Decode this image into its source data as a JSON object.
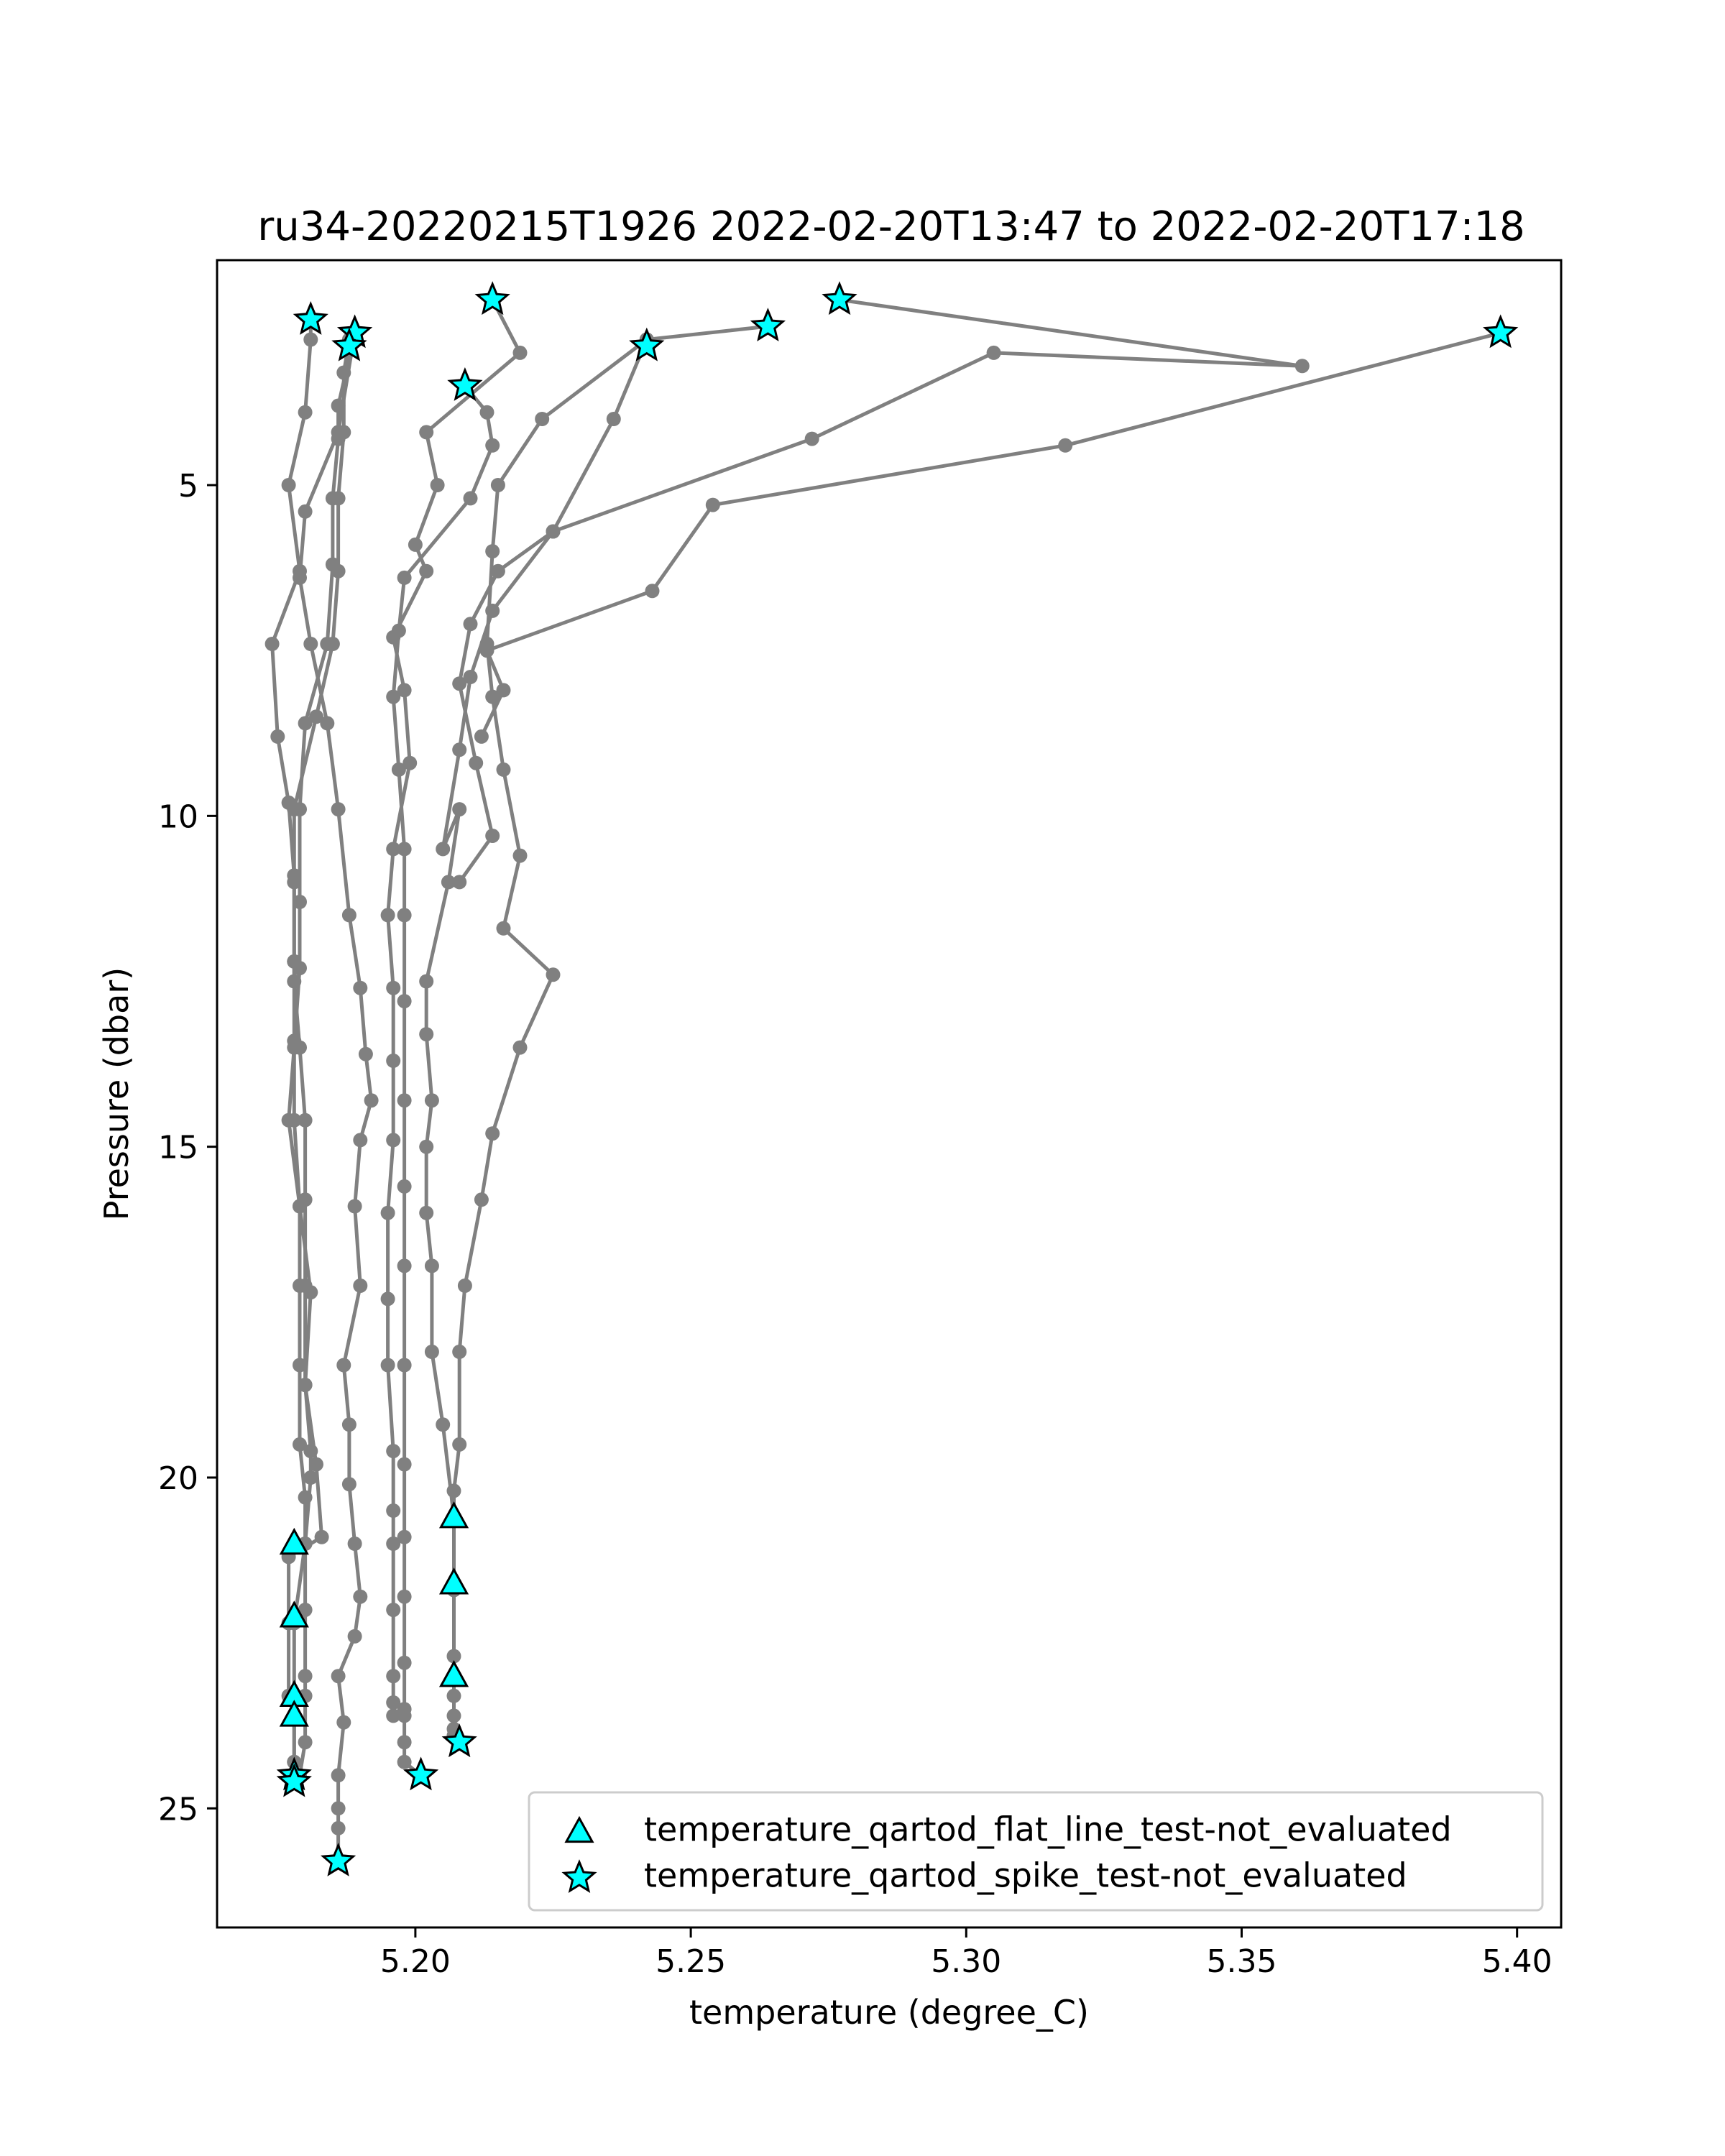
{
  "chart_data": {
    "type": "line",
    "title": "ru34-20220215T1926 2022-02-20T13:47 to 2022-02-20T17:18",
    "xlabel": "temperature (degree_C)",
    "ylabel": "Pressure (dbar)",
    "xlim": [
      5.164,
      5.408
    ],
    "ylim": [
      26.8,
      1.6
    ],
    "y_inverted": true,
    "xticks": [
      "5.20",
      "5.25",
      "5.30",
      "5.35",
      "5.40"
    ],
    "xtick_values": [
      5.2,
      5.25,
      5.3,
      5.35,
      5.4
    ],
    "yticks": [
      "5",
      "10",
      "15",
      "20",
      "25"
    ],
    "ytick_values": [
      5,
      10,
      15,
      20,
      25
    ],
    "grid": false,
    "legend_position": "lower-right",
    "colors": {
      "line": "#808080",
      "marker": "#00ffff",
      "edge": "#000000"
    },
    "profiles": [
      {
        "x": [
          5.181,
          5.181,
          5.18,
          5.177,
          5.179,
          5.174,
          5.175,
          5.177,
          5.178,
          5.178,
          5.178,
          5.179,
          5.18,
          5.18,
          5.18,
          5.18,
          5.181,
          5.181,
          5.18,
          5.18,
          5.18,
          5.18,
          5.18,
          5.179
        ],
        "y": [
          2.5,
          2.8,
          3.9,
          5.0,
          6.3,
          7.4,
          8.8,
          9.8,
          10.9,
          12.2,
          12.5,
          13.5,
          14.6,
          15.8,
          17.1,
          18.6,
          19.6,
          20.0,
          21.0,
          22.0,
          23.0,
          23.3,
          24.0,
          24.5
        ]
      },
      {
        "x": [
          5.189,
          5.186,
          5.186,
          5.185,
          5.185,
          5.184,
          5.18,
          5.179,
          5.179,
          5.179,
          5.178,
          5.177,
          5.179,
          5.181,
          5.18,
          5.182,
          5.183,
          5.177,
          5.177,
          5.177,
          5.178,
          5.178,
          5.178,
          5.178
        ],
        "y": [
          2.7,
          3.8,
          4.3,
          5.2,
          6.2,
          7.4,
          8.6,
          9.9,
          11.3,
          12.3,
          13.5,
          14.6,
          15.9,
          17.2,
          18.6,
          19.8,
          20.9,
          21.2,
          22.2,
          23.3,
          23.6,
          24.3,
          24.5,
          24.6
        ]
      },
      {
        "x": [
          5.188,
          5.187,
          5.187,
          5.186,
          5.186,
          5.185,
          5.182,
          5.178,
          5.178,
          5.178,
          5.178,
          5.178,
          5.179,
          5.179,
          5.179,
          5.179,
          5.18,
          5.18,
          5.178,
          5.178,
          5.178,
          5.178,
          5.178,
          5.178
        ],
        "y": [
          2.8,
          3.3,
          4.2,
          5.2,
          6.3,
          7.4,
          8.5,
          9.9,
          11.0,
          12.2,
          13.4,
          14.6,
          15.9,
          17.1,
          18.3,
          19.5,
          20.3,
          21.0,
          22.2,
          23.3,
          23.6,
          24.3,
          24.5,
          24.6
        ]
      },
      {
        "x": [
          5.209,
          5.213,
          5.214,
          5.21,
          5.198,
          5.197,
          5.196,
          5.197,
          5.198,
          5.198,
          5.198,
          5.198,
          5.198,
          5.198,
          5.198,
          5.198,
          5.198,
          5.198,
          5.198,
          5.198,
          5.198,
          5.198,
          5.198,
          5.201
        ],
        "y": [
          3.5,
          3.9,
          4.4,
          5.2,
          6.4,
          7.2,
          8.2,
          9.3,
          10.5,
          11.5,
          12.8,
          14.3,
          15.6,
          16.8,
          18.3,
          19.8,
          20.9,
          21.8,
          22.8,
          23.5,
          23.6,
          24.0,
          24.3,
          24.5
        ]
      },
      {
        "x": [
          5.214,
          5.219,
          5.202,
          5.204,
          5.2,
          5.202,
          5.196,
          5.198,
          5.199,
          5.196,
          5.195,
          5.196,
          5.196,
          5.196,
          5.195,
          5.195,
          5.195,
          5.196,
          5.196,
          5.196,
          5.196,
          5.196,
          5.196,
          5.196
        ],
        "y": [
          2.2,
          3.0,
          4.2,
          5.0,
          5.9,
          6.3,
          7.3,
          8.1,
          9.2,
          10.5,
          11.5,
          12.6,
          13.7,
          14.9,
          16.0,
          17.3,
          18.3,
          19.6,
          20.5,
          21.0,
          22.0,
          23.0,
          23.4,
          23.6
        ]
      },
      {
        "x": [
          5.189,
          5.186,
          5.18,
          5.179,
          5.181,
          5.184,
          5.186,
          5.188,
          5.19,
          5.191,
          5.192,
          5.19,
          5.189,
          5.19,
          5.187,
          5.188,
          5.188,
          5.189,
          5.19,
          5.189,
          5.186,
          5.187,
          5.186,
          5.186,
          5.186,
          5.186
        ],
        "y": [
          2.7,
          4.2,
          5.4,
          6.4,
          7.4,
          8.6,
          9.9,
          11.5,
          12.6,
          13.6,
          14.3,
          14.9,
          15.9,
          17.1,
          18.3,
          19.2,
          20.1,
          21.0,
          21.8,
          22.4,
          23.0,
          23.7,
          24.5,
          25.0,
          25.3,
          25.8
        ]
      },
      {
        "x": [
          5.242,
          5.236,
          5.225,
          5.214,
          5.21,
          5.208,
          5.205,
          5.208,
          5.206,
          5.202,
          5.202,
          5.203,
          5.202,
          5.202,
          5.203,
          5.203,
          5.205,
          5.207,
          5.207,
          5.207,
          5.207,
          5.207,
          5.207,
          5.207,
          5.207,
          5.208
        ],
        "y": [
          2.8,
          4.0,
          5.7,
          6.9,
          7.9,
          9.0,
          10.5,
          9.9,
          11.0,
          12.5,
          13.3,
          14.3,
          15.0,
          16.0,
          16.8,
          18.1,
          19.2,
          20.6,
          21.7,
          22.7,
          23.0,
          23.3,
          23.6,
          23.8,
          23.9,
          24.0
        ]
      },
      {
        "x": [
          5.264,
          5.242,
          5.223,
          5.215,
          5.214,
          5.213,
          5.214,
          5.216,
          5.219,
          5.216,
          5.225,
          5.219,
          5.214,
          5.212,
          5.209,
          5.208,
          5.208,
          5.207,
          5.207
        ],
        "y": [
          2.6,
          2.8,
          4.0,
          5.0,
          6.0,
          7.4,
          8.2,
          9.3,
          10.6,
          11.7,
          12.4,
          13.5,
          14.8,
          15.8,
          17.1,
          18.1,
          19.5,
          20.2,
          20.6
        ]
      },
      {
        "x": [
          5.277,
          5.361,
          5.305,
          5.272,
          5.225,
          5.215,
          5.21,
          5.208,
          5.211,
          5.214,
          5.208
        ],
        "y": [
          2.2,
          3.2,
          3.0,
          4.3,
          5.7,
          6.3,
          7.1,
          8.0,
          9.2,
          10.3,
          11.0
        ]
      },
      {
        "x": [
          5.397,
          5.318,
          5.254,
          5.243,
          5.213,
          5.216,
          5.212
        ],
        "y": [
          2.7,
          4.4,
          5.3,
          6.6,
          7.5,
          8.1,
          8.8
        ]
      }
    ],
    "series": [
      {
        "name": "temperature_qartod_flat_line_test-not_evaluated",
        "marker": "triangle",
        "x": [
          5.178,
          5.178,
          5.178,
          5.178,
          5.207,
          5.207,
          5.207
        ],
        "y": [
          21.0,
          22.1,
          23.3,
          23.6,
          20.6,
          21.6,
          23.0
        ]
      },
      {
        "name": "temperature_qartod_spike_test-not_evaluated",
        "marker": "star",
        "x": [
          5.181,
          5.189,
          5.188,
          5.209,
          5.214,
          5.242,
          5.264,
          5.277,
          5.397,
          5.178,
          5.178,
          5.186,
          5.201,
          5.208
        ],
        "y": [
          2.5,
          2.7,
          2.9,
          3.5,
          2.2,
          2.9,
          2.6,
          2.2,
          2.7,
          24.5,
          24.6,
          25.8,
          24.5,
          24.0
        ]
      }
    ]
  }
}
